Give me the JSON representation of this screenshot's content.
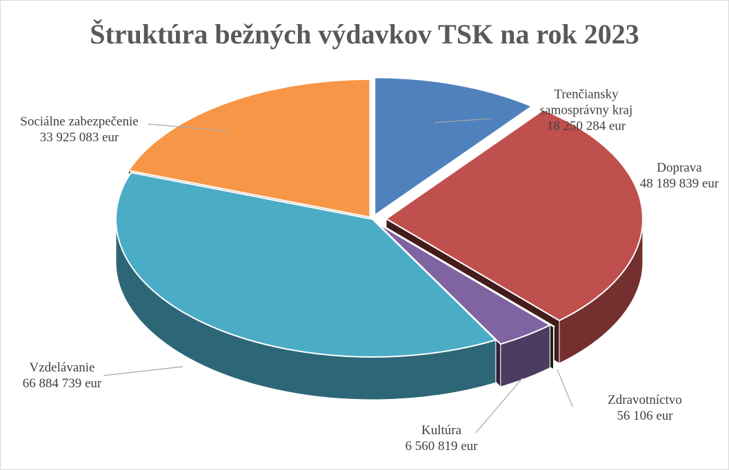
{
  "chart_data": {
    "type": "pie",
    "title": "Štruktúra bežných výdavkov TSK na rok 2023",
    "categories": [
      "Trenčiansky samosprávny kraj",
      "Doprava",
      "Zdravotníctvo",
      "Kultúra",
      "Vzdelávanie",
      "Sociálne zabezpečenie"
    ],
    "values": [
      18250284,
      48189839,
      56106,
      6560819,
      66884739,
      33925083
    ],
    "value_labels": [
      "18 250 284 eur",
      "48 189 839 eur",
      "56 106 eur",
      "6 560 819 eur",
      "66 884 739 eur",
      "33 925 083 eur"
    ],
    "colors": [
      "#4f81bd",
      "#c0504d",
      "#4f6228",
      "#8064a2",
      "#4bacc6",
      "#f79646"
    ]
  }
}
